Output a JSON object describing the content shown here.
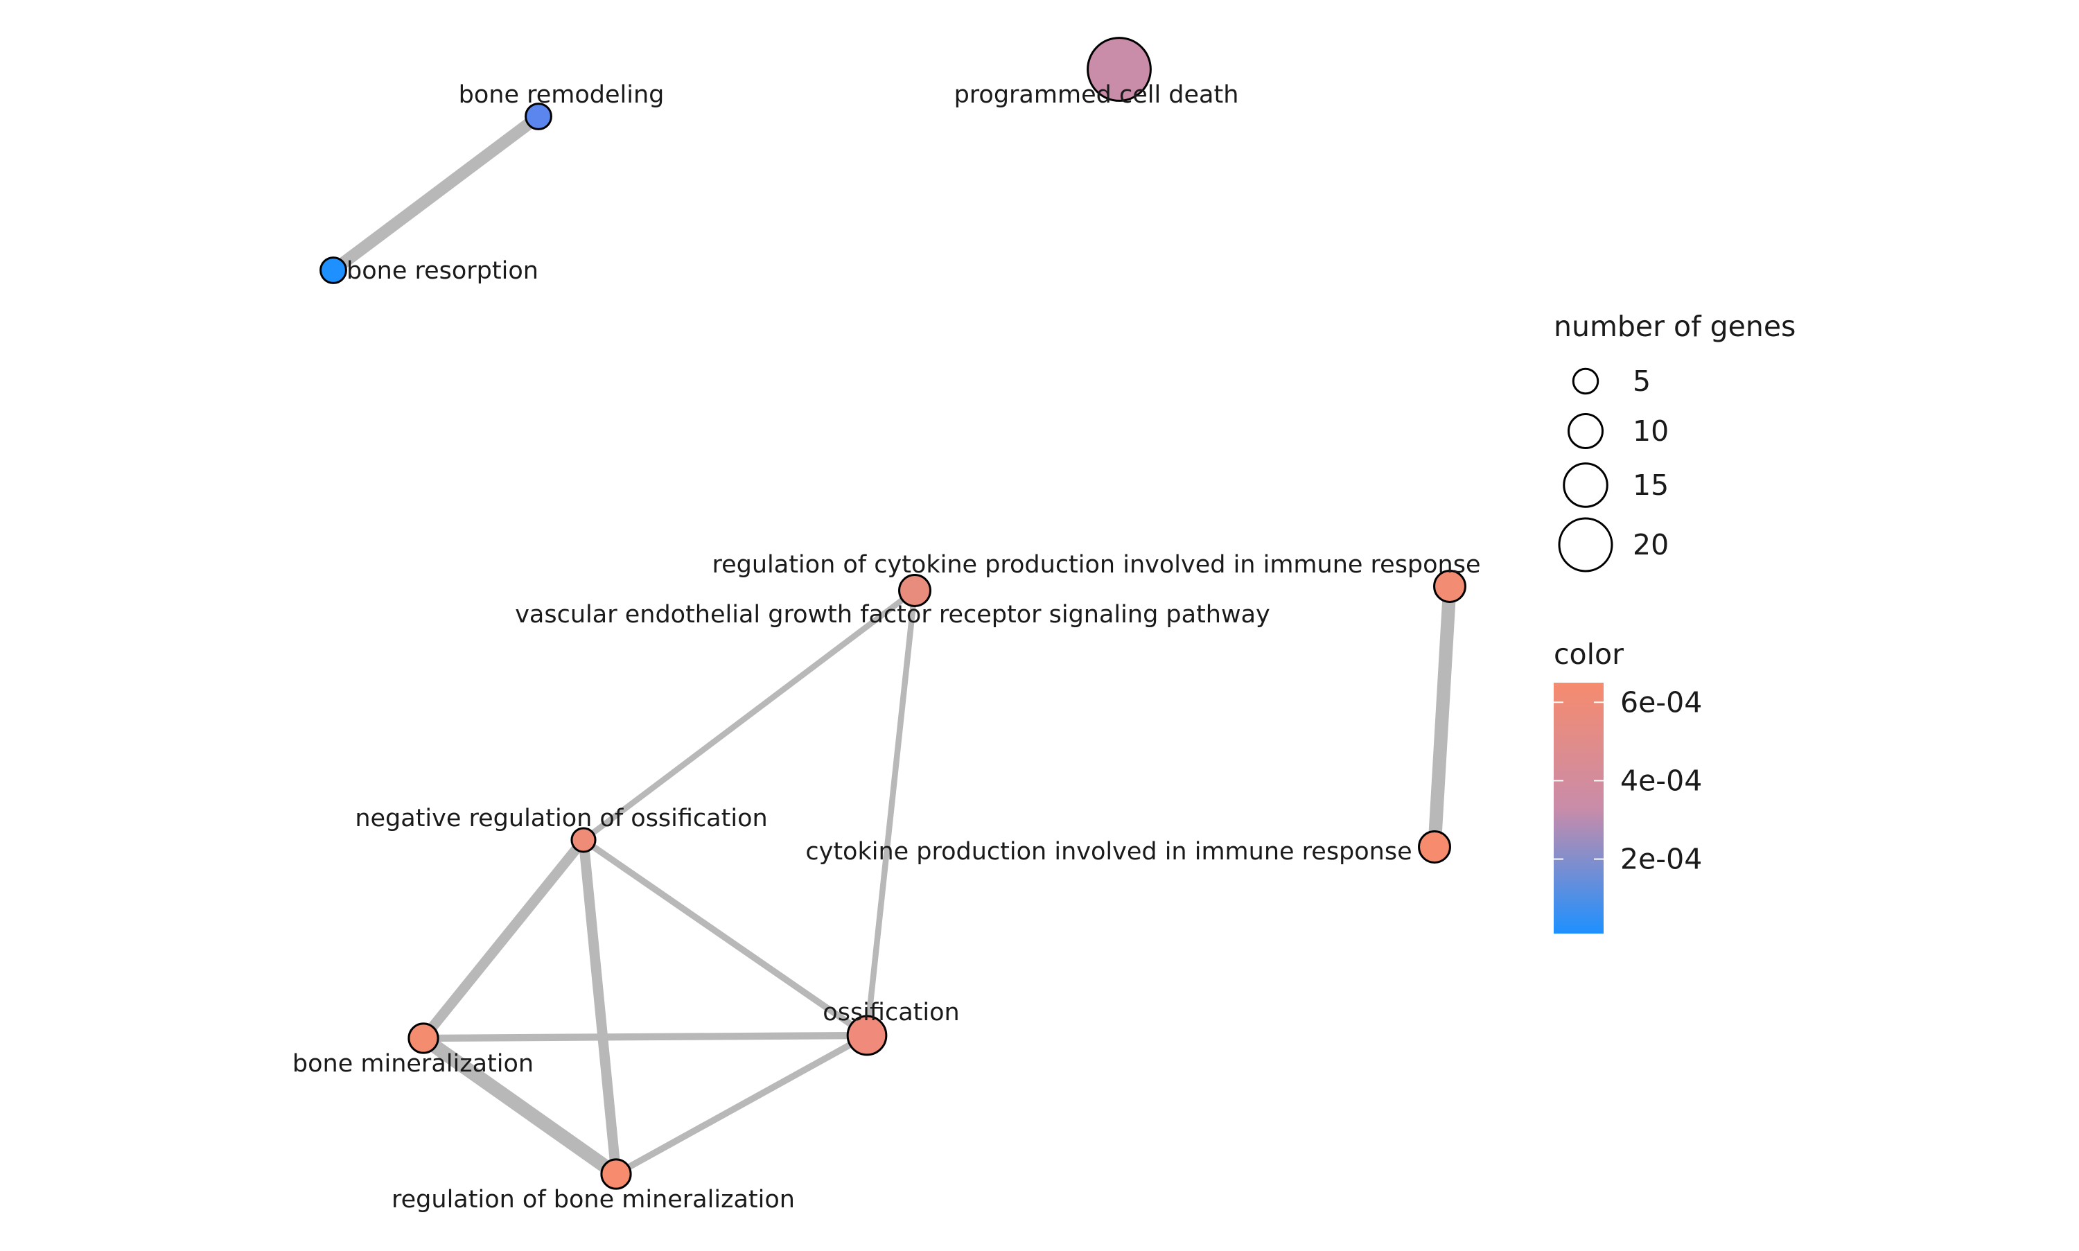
{
  "network": {
    "nodes": [
      {
        "id": "bone-remodeling",
        "label": "bone remodeling",
        "genes": 4,
        "color": "#5B86EE",
        "color_value": 0.00012
      },
      {
        "id": "bone-resorption",
        "label": "bone resorption",
        "genes": 4,
        "color": "#1E90FF",
        "color_value": 1e-05
      },
      {
        "id": "programmed-cell-death",
        "label": "programmed cell death",
        "genes": 24,
        "color": "#C98CA9",
        "color_value": 0.00036
      },
      {
        "id": "regulation-cytokine",
        "label": "regulation of cytokine production involved in immune response",
        "genes": 7,
        "color": "#F28C72",
        "color_value": 0.00063
      },
      {
        "id": "vegf-signaling",
        "label": "vascular endothelial growth factor receptor signaling pathway",
        "genes": 7,
        "color": "#E88D7E",
        "color_value": 0.00058
      },
      {
        "id": "negative-regulation-ossification",
        "label": "negative regulation of ossification",
        "genes": 3,
        "color": "#EE8C78",
        "color_value": 0.0006
      },
      {
        "id": "cytokine-production",
        "label": "cytokine production involved in immune response",
        "genes": 7,
        "color": "#F68B6E",
        "color_value": 0.00065
      },
      {
        "id": "bone-mineralization",
        "label": "bone mineralization",
        "genes": 6,
        "color": "#F48C70",
        "color_value": 0.00064
      },
      {
        "id": "ossification",
        "label": "ossification",
        "genes": 11,
        "color": "#F08B7B",
        "color_value": 0.00062
      },
      {
        "id": "regulation-bone-mineralization",
        "label": "regulation of bone mineralization",
        "genes": 6,
        "color": "#F68B6E",
        "color_value": 0.00065
      }
    ],
    "edges": [
      {
        "source": "bone-remodeling",
        "target": "bone-resorption",
        "weight": 0.75
      },
      {
        "source": "regulation-cytokine",
        "target": "cytokine-production",
        "weight": 0.85
      },
      {
        "source": "vegf-signaling",
        "target": "negative-regulation-ossification",
        "weight": 0.25
      },
      {
        "source": "vegf-signaling",
        "target": "ossification",
        "weight": 0.25
      },
      {
        "source": "negative-regulation-ossification",
        "target": "bone-mineralization",
        "weight": 0.6
      },
      {
        "source": "negative-regulation-ossification",
        "target": "regulation-bone-mineralization",
        "weight": 0.6
      },
      {
        "source": "negative-regulation-ossification",
        "target": "ossification",
        "weight": 0.3
      },
      {
        "source": "bone-mineralization",
        "target": "ossification",
        "weight": 0.35
      },
      {
        "source": "bone-mineralization",
        "target": "regulation-bone-mineralization",
        "weight": 0.9
      },
      {
        "source": "regulation-bone-mineralization",
        "target": "ossification",
        "weight": 0.3
      }
    ],
    "edge_color": "#B8B8B8"
  },
  "legend": {
    "size_title": "number of genes",
    "size_entries": [
      {
        "label": "5",
        "genes": 5
      },
      {
        "label": "10",
        "genes": 10
      },
      {
        "label": "15",
        "genes": 15
      },
      {
        "label": "20",
        "genes": 20
      }
    ],
    "color_title": "color",
    "color_ticks": [
      {
        "label": "6e-04",
        "value": 0.0006
      },
      {
        "label": "4e-04",
        "value": 0.0004
      },
      {
        "label": "2e-04",
        "value": 0.0002
      }
    ],
    "color_gradient": {
      "low": "#1E90FF",
      "mid": "#C98CA9",
      "high": "#F68B6E"
    }
  }
}
